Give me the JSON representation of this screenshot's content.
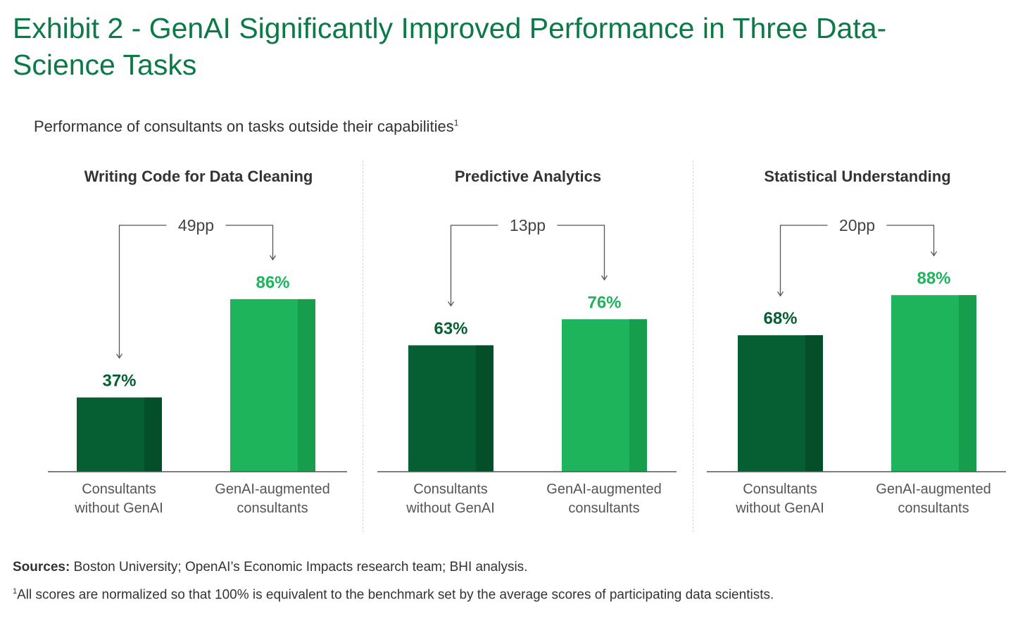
{
  "title": "Exhibit 2 - GenAI Significantly Improved Performance in Three Data-Science Tasks",
  "subtitle": "Performance of consultants on tasks outside their capabilities",
  "subtitle_footnote_mark": "1",
  "colors": {
    "title": "#0b7a46",
    "dark_bar": "#065f32",
    "dark_bar_shade": "#044f29",
    "light_bar": "#1db45b",
    "light_bar_shade": "#179e4d",
    "dark_label": "#065f32",
    "light_label": "#1db45b"
  },
  "chart_data": [
    {
      "type": "bar",
      "title": "Writing Code for Data Cleaning",
      "categories": [
        "Consultants without GenAI",
        "GenAI-augmented consultants"
      ],
      "category_lines": [
        [
          "Consultants",
          "without GenAI"
        ],
        [
          "GenAI-augmented",
          "consultants"
        ]
      ],
      "values": [
        37,
        86
      ],
      "value_labels": [
        "37%",
        "86%"
      ],
      "difference_label": "49pp",
      "ylim": [
        0,
        100
      ]
    },
    {
      "type": "bar",
      "title": "Predictive Analytics",
      "categories": [
        "Consultants without GenAI",
        "GenAI-augmented consultants"
      ],
      "category_lines": [
        [
          "Consultants",
          "without GenAI"
        ],
        [
          "GenAI-augmented",
          "consultants"
        ]
      ],
      "values": [
        63,
        76
      ],
      "value_labels": [
        "63%",
        "76%"
      ],
      "difference_label": "13pp",
      "ylim": [
        0,
        100
      ]
    },
    {
      "type": "bar",
      "title": "Statistical Understanding",
      "categories": [
        "Consultants without GenAI",
        "GenAI-augmented consultants"
      ],
      "category_lines": [
        [
          "Consultants",
          "without GenAI"
        ],
        [
          "GenAI-augmented",
          "consultants"
        ]
      ],
      "values": [
        68,
        88
      ],
      "value_labels": [
        "68%",
        "88%"
      ],
      "difference_label": "20pp",
      "ylim": [
        0,
        100
      ]
    }
  ],
  "footer": {
    "sources_label": "Sources:",
    "sources_text": " Boston University; OpenAI’s Economic Impacts research team; BHI analysis.",
    "note_mark": "1",
    "note_text": "All scores are normalized so that 100% is equivalent to the benchmark set by the average scores of participating data scientists."
  }
}
